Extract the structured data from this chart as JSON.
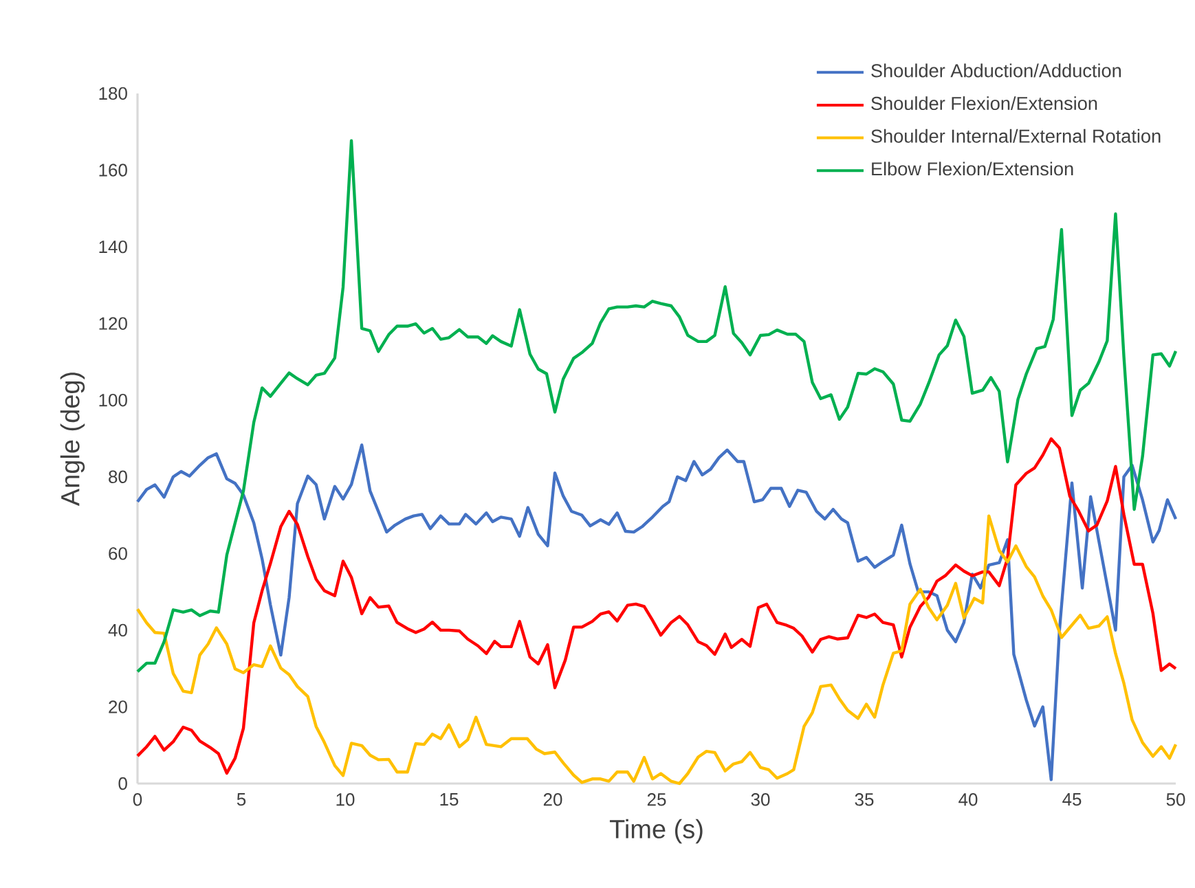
{
  "chart_data": {
    "type": "line",
    "xlabel": "Time (s)",
    "ylabel": "Angle (deg)",
    "xlim": [
      0,
      50
    ],
    "ylim": [
      0,
      180
    ],
    "xticks": [
      0,
      5,
      10,
      15,
      20,
      25,
      30,
      35,
      40,
      45,
      50
    ],
    "yticks": [
      0,
      20,
      40,
      60,
      80,
      100,
      120,
      140,
      160,
      180
    ],
    "legend": "top right",
    "marker": "none",
    "line_style": "solid",
    "series": [
      {
        "name": "Shoulder Abduction/Adduction",
        "color": "#4472c4",
        "x": [
          0,
          0.44,
          0.84,
          1.28,
          1.72,
          2.1,
          2.5,
          3,
          3.4,
          3.8,
          4.3,
          4.7,
          5.1,
          5.6,
          6,
          6.4,
          6.9,
          7.3,
          7.7,
          8.2,
          8.6,
          9,
          9.5,
          9.9,
          10.3,
          10.8,
          11.2,
          12,
          12.4,
          12.9,
          13.3,
          13.7,
          14.1,
          14.6,
          15,
          15.5,
          15.8,
          16.3,
          16.8,
          17.1,
          17.5,
          18,
          18.4,
          18.8,
          19.3,
          19.75,
          20.1,
          20.5,
          20.9,
          21.4,
          21.8,
          22.3,
          22.7,
          23.1,
          23.5,
          23.9,
          24.3,
          24.8,
          25.3,
          25.6,
          26,
          26.4,
          26.8,
          27.2,
          27.6,
          28,
          28.4,
          28.9,
          29.2,
          29.7,
          30.1,
          30.5,
          31,
          31.4,
          31.8,
          32.2,
          32.7,
          33.1,
          33.5,
          33.9,
          34.2,
          34.7,
          35.1,
          35.5,
          35.9,
          36.4,
          36.8,
          37.2,
          37.6,
          38.1,
          38.5,
          39,
          39.4,
          39.8,
          40.2,
          40.6,
          41,
          41.5,
          41.9,
          42.2,
          42.8,
          43.2,
          43.6,
          44,
          44.4,
          45,
          45.5,
          45.9,
          47.1,
          47.5,
          47.9,
          48.4,
          48.9,
          49.2,
          49.6,
          50
        ],
        "values": [
          73.5,
          76.7,
          77.9,
          74.7,
          80,
          81.4,
          80.2,
          83,
          85,
          86,
          79.5,
          78.3,
          75.3,
          68,
          58.6,
          46.6,
          33.5,
          48.5,
          73,
          80.2,
          78,
          69,
          77.5,
          74.2,
          78,
          88.3,
          76.3,
          65.6,
          67.4,
          69,
          69.8,
          70.2,
          66.5,
          69.8,
          67.7,
          67.7,
          70.2,
          67.7,
          70.6,
          68.3,
          69.5,
          69,
          64.5,
          72,
          65,
          62,
          81,
          75,
          71,
          70,
          67.2,
          68.8,
          67.6,
          70.6,
          65.8,
          65.6,
          67,
          69.5,
          72.3,
          73.5,
          80,
          79,
          84,
          80.5,
          82,
          85,
          87,
          84,
          84,
          73.5,
          74,
          77,
          77,
          72.3,
          76.5,
          76,
          71,
          69,
          71.5,
          69,
          68,
          58,
          59,
          56.4,
          57.9,
          59.6,
          67.4,
          57.3,
          50,
          50,
          49,
          40,
          37,
          42,
          54.6,
          51,
          57,
          57.6,
          63.6,
          33.7,
          21.8,
          15,
          20,
          1,
          40,
          78.4,
          51,
          74.8,
          40,
          80,
          83,
          74,
          63,
          66,
          74,
          69
        ]
      },
      {
        "name": "Shoulder Flexion/Extension",
        "color": "#ff0000",
        "x": [
          0,
          0.44,
          0.84,
          1.28,
          1.72,
          2.2,
          2.6,
          3,
          3.5,
          3.9,
          4.3,
          4.7,
          5.1,
          5.6,
          6,
          6.4,
          6.9,
          7.3,
          7.7,
          8.2,
          8.6,
          9,
          9.5,
          9.9,
          10.3,
          10.8,
          11.2,
          11.6,
          12.1,
          12.5,
          13,
          13.4,
          13.8,
          14.2,
          14.6,
          15,
          15.5,
          15.9,
          16.4,
          16.8,
          17.2,
          17.5,
          18,
          18.4,
          18.9,
          19.3,
          19.75,
          20.1,
          20.6,
          21,
          21.4,
          21.9,
          22.3,
          22.7,
          23.1,
          23.6,
          24,
          24.4,
          24.8,
          25.2,
          25.7,
          26.1,
          26.5,
          27,
          27.4,
          27.8,
          28.3,
          28.6,
          29.1,
          29.5,
          29.9,
          30.3,
          30.8,
          31.2,
          31.6,
          32,
          32.5,
          32.9,
          33.3,
          33.7,
          34.2,
          34.7,
          35.1,
          35.5,
          35.9,
          36.4,
          36.8,
          37.2,
          37.7,
          38.1,
          38.5,
          38.9,
          39.4,
          39.8,
          40.2,
          40.7,
          41,
          41.5,
          41.9,
          42.3,
          42.8,
          43.2,
          43.6,
          44,
          44.4,
          44.9,
          45.3,
          45.8,
          46.2,
          46.7,
          47.1,
          47.5,
          48,
          48.4,
          48.9,
          49.3,
          49.7,
          50
        ],
        "values": [
          7.2,
          9.6,
          12.3,
          8.7,
          10.9,
          14.7,
          13.9,
          11.1,
          9.4,
          7.8,
          2.7,
          6.6,
          14.4,
          41.9,
          50.3,
          57.4,
          67,
          71,
          67.6,
          59.2,
          53.3,
          50.3,
          49,
          58,
          53.8,
          44.3,
          48.5,
          46,
          46.3,
          42,
          40.4,
          39.4,
          40.3,
          42.1,
          40,
          40,
          39.8,
          37.7,
          35.9,
          33.9,
          37.1,
          35.7,
          35.7,
          42.3,
          33,
          31.2,
          36.2,
          25,
          32.2,
          40.8,
          40.8,
          42.3,
          44.2,
          44.8,
          42.4,
          46.5,
          46.8,
          46.2,
          42.6,
          38.7,
          42,
          43.6,
          41.4,
          37,
          36,
          33.7,
          39,
          35.5,
          37.6,
          35.8,
          45.9,
          46.8,
          42,
          41.4,
          40.5,
          38.5,
          34.3,
          37.6,
          38.3,
          37.7,
          38,
          43.9,
          43.3,
          44.2,
          42,
          41.4,
          33,
          40.8,
          46.2,
          48.6,
          52.8,
          54.2,
          57,
          55.4,
          54.2,
          55.2,
          55.2,
          51.6,
          58.8,
          77.9,
          80.9,
          82.3,
          85.7,
          89.9,
          87.5,
          74.9,
          71.3,
          65.9,
          67.4,
          73.7,
          82.7,
          70.2,
          57.2,
          57.2,
          44.4,
          29.5,
          31.2,
          30
        ]
      },
      {
        "name": "Shoulder Internal/External Rotation",
        "color": "#ffc000",
        "x": [
          0,
          0.44,
          0.84,
          1.28,
          1.72,
          2.2,
          2.6,
          3,
          3.4,
          3.8,
          4.3,
          4.7,
          5.1,
          5.6,
          6,
          6.4,
          6.9,
          7.3,
          7.7,
          8.2,
          8.6,
          9,
          9.5,
          9.9,
          10.3,
          10.8,
          11.2,
          11.6,
          12.1,
          12.5,
          13,
          13.4,
          13.8,
          14.2,
          14.6,
          15,
          15.5,
          15.9,
          16.3,
          16.8,
          17.5,
          18,
          18.77,
          19.2,
          19.6,
          20.1,
          20.5,
          21,
          21.4,
          21.9,
          22.3,
          22.7,
          23.1,
          23.6,
          23.9,
          24.4,
          24.8,
          25.2,
          25.7,
          26.1,
          26.5,
          27,
          27.4,
          27.8,
          28.3,
          28.7,
          29.1,
          29.5,
          30,
          30.4,
          30.8,
          31.3,
          31.6,
          32.1,
          32.5,
          32.9,
          33.4,
          33.8,
          34.2,
          34.7,
          35.1,
          35.5,
          35.9,
          36.4,
          36.8,
          37.2,
          37.7,
          38.1,
          38.5,
          39,
          39.4,
          39.8,
          40.3,
          40.7,
          41,
          41.5,
          41.9,
          42.3,
          42.8,
          43.2,
          43.6,
          44,
          44.5,
          44.9,
          45.4,
          45.8,
          46.3,
          46.7,
          47.1,
          47.5,
          47.9,
          48.4,
          48.9,
          49.3,
          49.7,
          50
        ],
        "values": [
          45.5,
          41.9,
          39.4,
          39.2,
          28.7,
          24.1,
          23.7,
          33.5,
          36.4,
          40.6,
          36.4,
          29.9,
          28.9,
          31,
          30.5,
          35.9,
          30.1,
          28.4,
          25.3,
          22.7,
          14.9,
          10.7,
          4.7,
          2.1,
          10.5,
          9.9,
          7.4,
          6.2,
          6.3,
          3,
          3,
          10.4,
          10.2,
          12.9,
          11.7,
          15.3,
          9.6,
          11.4,
          17.3,
          10.2,
          9.6,
          11.7,
          11.7,
          9,
          7.8,
          8.2,
          5.4,
          2.2,
          0.3,
          1.2,
          1.2,
          0.6,
          3,
          3,
          0.6,
          6.8,
          1.2,
          2.6,
          0.6,
          0,
          2.6,
          6.9,
          8.4,
          8.1,
          3.3,
          5.1,
          5.7,
          8.1,
          4.2,
          3.6,
          1.4,
          2.6,
          3.6,
          14.9,
          18.5,
          25.3,
          25.7,
          22.1,
          19.1,
          17,
          20.7,
          17.3,
          25.7,
          34,
          34.6,
          46.8,
          50.7,
          45.9,
          42.7,
          46.5,
          52.2,
          43.2,
          48.3,
          47.1,
          69.8,
          60.8,
          57.8,
          62,
          56.6,
          53.9,
          48.9,
          45.3,
          38.1,
          40.7,
          43.9,
          40.5,
          41.1,
          43.5,
          33.9,
          26.2,
          16.6,
          10.7,
          7.1,
          9.6,
          6.6,
          10.2
        ]
      },
      {
        "name": "Elbow Flexion/Extension",
        "color": "#00b050",
        "x": [
          0,
          0.44,
          0.84,
          1.28,
          1.72,
          2.2,
          2.6,
          3,
          3.5,
          3.9,
          4.3,
          4.7,
          5.1,
          5.6,
          6,
          6.4,
          6.9,
          7.3,
          7.7,
          8.2,
          8.6,
          9,
          9.5,
          9.9,
          10.3,
          10.8,
          11.2,
          11.6,
          12.1,
          12.5,
          13,
          13.4,
          13.8,
          14.2,
          14.6,
          15,
          15.5,
          15.9,
          16.4,
          16.8,
          17.1,
          17.5,
          18,
          18.4,
          18.9,
          19.3,
          19.7,
          20.1,
          20.5,
          21,
          21.4,
          21.9,
          22.3,
          22.7,
          23.1,
          23.6,
          24,
          24.4,
          24.8,
          25.2,
          25.7,
          26.1,
          26.5,
          27,
          27.4,
          27.8,
          28.3,
          28.7,
          29.1,
          29.5,
          30,
          30.4,
          30.8,
          31.3,
          31.7,
          32.1,
          32.5,
          32.9,
          33.4,
          33.8,
          34.2,
          34.7,
          35.1,
          35.5,
          35.9,
          36.4,
          36.8,
          37.2,
          37.7,
          38.1,
          38.6,
          39,
          39.4,
          39.8,
          40.2,
          40.7,
          41.1,
          41.5,
          41.9,
          42.4,
          42.8,
          43.3,
          43.7,
          44.1,
          44.5,
          45,
          45.4,
          45.8,
          46.3,
          46.7,
          47.1,
          47.5,
          48,
          48.4,
          48.9,
          49.3,
          49.7,
          50
        ],
        "values": [
          29.2,
          31.4,
          31.4,
          37,
          45.3,
          44.7,
          45.3,
          43.8,
          45,
          44.7,
          59.6,
          68,
          76.3,
          94.2,
          103.2,
          101,
          104.4,
          107.1,
          105.6,
          104,
          106.5,
          107,
          111,
          129.5,
          167.7,
          118.7,
          118.1,
          112.7,
          117.1,
          119.3,
          119.3,
          119.9,
          117.5,
          118.7,
          115.9,
          116.3,
          118.4,
          116.5,
          116.5,
          114.8,
          116.8,
          115.3,
          114.1,
          123.6,
          112,
          108.1,
          106.9,
          96.9,
          105.5,
          110.9,
          112.4,
          114.8,
          120.2,
          123.8,
          124.3,
          124.3,
          124.6,
          124.3,
          125.8,
          125.2,
          124.6,
          121.7,
          116.9,
          115.3,
          115.3,
          116.9,
          129.6,
          117.4,
          115,
          111.8,
          116.9,
          117.1,
          118.3,
          117.2,
          117.2,
          115.3,
          104.6,
          100.4,
          101.4,
          95,
          98.2,
          107,
          106.8,
          108.2,
          107.4,
          104.2,
          94.8,
          94.5,
          99,
          104.4,
          111.8,
          114.2,
          120.9,
          116.6,
          101.8,
          102.6,
          105.9,
          102.3,
          83.9,
          100.2,
          106.8,
          113.4,
          114,
          121.1,
          144.5,
          96,
          102.6,
          104.4,
          110,
          115.5,
          148.6,
          111.5,
          71.5,
          85.3,
          111.8,
          112.1,
          108.9,
          112.8
        ]
      }
    ]
  }
}
